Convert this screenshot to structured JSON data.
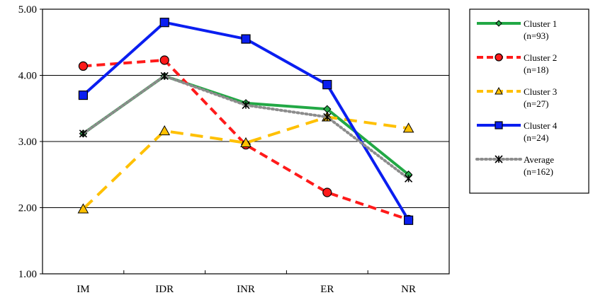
{
  "chart_data": {
    "type": "line",
    "title": "",
    "xlabel": "",
    "ylabel": "",
    "categories": [
      "IM",
      "IDR",
      "INR",
      "ER",
      "NR"
    ],
    "ylim": [
      1.0,
      5.0
    ],
    "yticks": [
      "1.00",
      "2.00",
      "3.00",
      "4.00",
      "5.00"
    ],
    "grid": "horizontal",
    "legend_position": "right",
    "series": [
      {
        "name": "Cluster 1",
        "n": "(n=93)",
        "color": "#22a845",
        "dash": "solid",
        "marker": "diamond",
        "values": [
          3.12,
          3.99,
          3.58,
          3.49,
          2.5
        ]
      },
      {
        "name": "Cluster 2",
        "n": "(n=18)",
        "color": "#ff1a1a",
        "dash": "dashed",
        "marker": "circle",
        "values": [
          4.14,
          4.23,
          2.95,
          2.23,
          1.82
        ]
      },
      {
        "name": "Cluster 3",
        "n": "(n=27)",
        "color": "#ffc000",
        "dash": "longdash",
        "marker": "triangle",
        "values": [
          1.98,
          3.16,
          2.98,
          3.37,
          3.2
        ]
      },
      {
        "name": "Cluster 4",
        "n": "(n=24)",
        "color": "#0a1ef0",
        "dash": "solid",
        "marker": "square",
        "values": [
          3.7,
          4.8,
          4.55,
          3.86,
          1.81
        ]
      },
      {
        "name": "Average",
        "n": "(n=162)",
        "color": "#8c8c8c",
        "dash": "dotted",
        "marker": "x",
        "values": [
          3.12,
          3.99,
          3.55,
          3.37,
          2.44
        ]
      }
    ]
  }
}
